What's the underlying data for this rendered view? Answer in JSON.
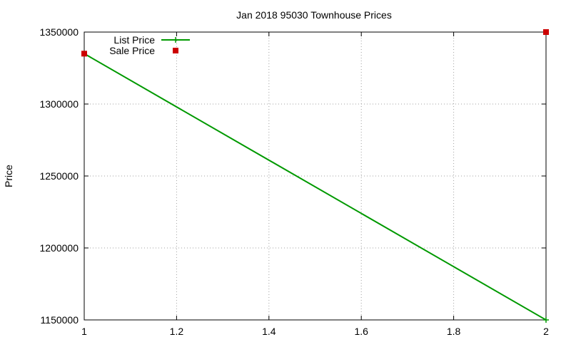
{
  "chart_data": {
    "type": "line",
    "title": "Jan 2018 95030 Townhouse Prices",
    "xlabel": "",
    "ylabel": "Price",
    "xlim": [
      1,
      2
    ],
    "ylim": [
      1150000,
      1350000
    ],
    "x_ticks": [
      "1",
      "1.2",
      "1.4",
      "1.6",
      "1.8",
      "2"
    ],
    "y_ticks": [
      "1150000",
      "1200000",
      "1250000",
      "1300000",
      "1350000"
    ],
    "grid": true,
    "legend_position": "top-left",
    "series": [
      {
        "name": "List Price",
        "style": "lines+points",
        "color": "#009900",
        "points": [
          {
            "x": 1,
            "y": 1335000
          },
          {
            "x": 2,
            "y": 1150000
          }
        ]
      },
      {
        "name": "Sale Price",
        "style": "points",
        "color": "#cc0000",
        "points": [
          {
            "x": 1,
            "y": 1335000
          },
          {
            "x": 2,
            "y": 1350000
          }
        ]
      }
    ]
  }
}
